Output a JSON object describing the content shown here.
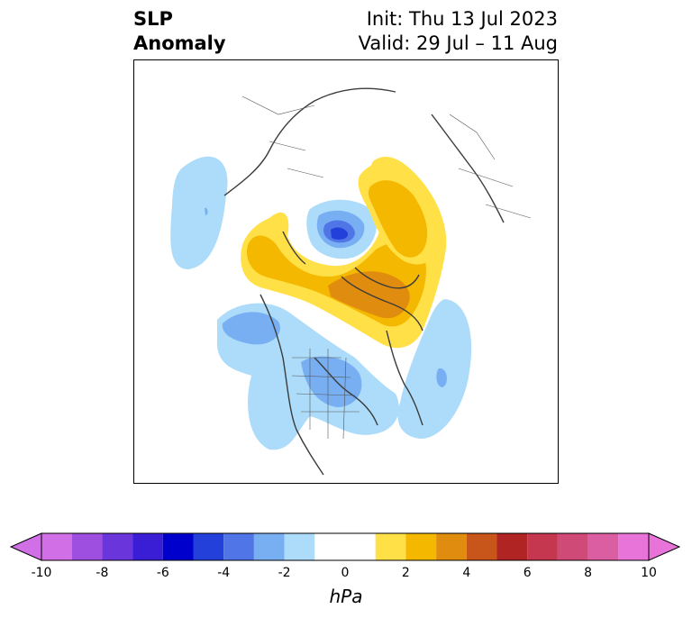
{
  "header": {
    "variable_line1": "SLP",
    "variable_line2": "Anomaly",
    "init_text": "Init: Thu 13 Jul 2023",
    "valid_text": "Valid: 29 Jul – 11 Aug"
  },
  "map": {
    "projection": "polar stereographic (North America / Arctic)",
    "features": [
      {
        "name": "positive anomaly over Greenland and Canadian Arctic",
        "approx_hpa": 4
      },
      {
        "name": "positive anomaly over Barents/Kara Sea and Scandinavia",
        "approx_hpa": 2
      },
      {
        "name": "negative anomaly near North Pole / Siberian Arctic",
        "approx_hpa": -5
      },
      {
        "name": "negative anomaly over central North America",
        "approx_hpa": -2
      },
      {
        "name": "negative anomaly over Gulf of Alaska",
        "approx_hpa": -2
      },
      {
        "name": "negative anomaly over North Atlantic",
        "approx_hpa": -2
      },
      {
        "name": "negative anomaly over North Pacific / Bering",
        "approx_hpa": -1
      }
    ]
  },
  "colorbar": {
    "unit": "hPa",
    "extend": "both",
    "levels": [
      -10,
      -9,
      -8,
      -7,
      -6,
      -5,
      -4,
      -3,
      -2,
      -1,
      1,
      2,
      3,
      4,
      5,
      6,
      7,
      8,
      9,
      10
    ],
    "tick_labels": [
      "-10",
      "-8",
      "-6",
      "-4",
      "-2",
      "0",
      "2",
      "4",
      "6",
      "8",
      "10"
    ],
    "colors": [
      "#d170e6",
      "#9f4fdf",
      "#6a35db",
      "#3a1ed6",
      "#0000cc",
      "#2440db",
      "#4f75e6",
      "#78aef2",
      "#acdcfa",
      "#ffffff",
      "#ffe047",
      "#f5b800",
      "#e08c0e",
      "#c8561b",
      "#b02424",
      "#c4374f",
      "#d04a78",
      "#db5ea3",
      "#e873d9"
    ],
    "under_color": "#d170e6",
    "over_color": "#e873d9"
  }
}
